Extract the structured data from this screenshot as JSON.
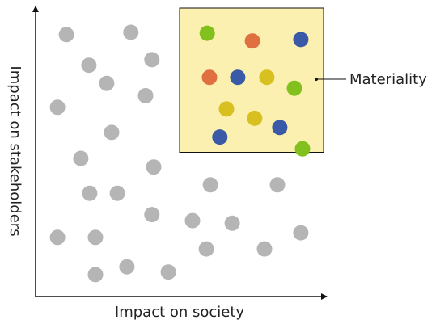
{
  "labels": {
    "x_axis": "Impact on society",
    "y_axis": "Impact on stakeholders",
    "callout": "Materiality"
  },
  "colors": {
    "axis": "#111111",
    "highlight_fill": "#fbf0b0",
    "highlight_stroke": "#111111",
    "gray": "#b5b5b5",
    "green": "#82c01e",
    "orange": "#e07040",
    "blue": "#3a5aa8",
    "yellow": "#d8c020"
  },
  "chart_data": {
    "type": "scatter",
    "xlim": [
      0,
      100
    ],
    "ylim": [
      0,
      100
    ],
    "highlight_region": {
      "x": [
        50,
        100
      ],
      "y": [
        50,
        100
      ]
    },
    "points": [
      {
        "x": 10.7,
        "y": 90.8,
        "color": "gray"
      },
      {
        "x": 33.1,
        "y": 91.6,
        "color": "gray"
      },
      {
        "x": 18.5,
        "y": 80.2,
        "color": "gray"
      },
      {
        "x": 40.4,
        "y": 82.1,
        "color": "gray"
      },
      {
        "x": 24.7,
        "y": 73.9,
        "color": "gray"
      },
      {
        "x": 38.2,
        "y": 69.6,
        "color": "gray"
      },
      {
        "x": 7.6,
        "y": 65.6,
        "color": "gray"
      },
      {
        "x": 26.4,
        "y": 56.9,
        "color": "gray"
      },
      {
        "x": 15.7,
        "y": 47.9,
        "color": "gray"
      },
      {
        "x": 41.0,
        "y": 44.9,
        "color": "gray"
      },
      {
        "x": 18.8,
        "y": 35.8,
        "color": "gray"
      },
      {
        "x": 28.4,
        "y": 35.8,
        "color": "gray"
      },
      {
        "x": 60.7,
        "y": 38.7,
        "color": "gray"
      },
      {
        "x": 84.0,
        "y": 38.7,
        "color": "gray"
      },
      {
        "x": 40.4,
        "y": 28.4,
        "color": "gray"
      },
      {
        "x": 54.5,
        "y": 26.3,
        "color": "gray"
      },
      {
        "x": 68.3,
        "y": 25.4,
        "color": "gray"
      },
      {
        "x": 92.1,
        "y": 22.1,
        "color": "gray"
      },
      {
        "x": 7.6,
        "y": 20.5,
        "color": "gray"
      },
      {
        "x": 20.8,
        "y": 20.5,
        "color": "gray"
      },
      {
        "x": 59.3,
        "y": 16.5,
        "color": "gray"
      },
      {
        "x": 79.5,
        "y": 16.5,
        "color": "gray"
      },
      {
        "x": 31.7,
        "y": 10.3,
        "color": "gray"
      },
      {
        "x": 20.8,
        "y": 7.6,
        "color": "gray"
      },
      {
        "x": 46.1,
        "y": 8.5,
        "color": "gray"
      },
      {
        "x": 59.6,
        "y": 91.3,
        "color": "green"
      },
      {
        "x": 75.3,
        "y": 88.6,
        "color": "orange"
      },
      {
        "x": 92.1,
        "y": 89.1,
        "color": "blue"
      },
      {
        "x": 60.4,
        "y": 76.0,
        "color": "orange"
      },
      {
        "x": 70.2,
        "y": 76.0,
        "color": "blue"
      },
      {
        "x": 80.3,
        "y": 76.0,
        "color": "yellow"
      },
      {
        "x": 89.9,
        "y": 72.2,
        "color": "green"
      },
      {
        "x": 66.3,
        "y": 65.0,
        "color": "yellow"
      },
      {
        "x": 76.1,
        "y": 61.8,
        "color": "yellow"
      },
      {
        "x": 84.8,
        "y": 58.6,
        "color": "blue"
      },
      {
        "x": 64.0,
        "y": 55.3,
        "color": "blue"
      },
      {
        "x": 92.7,
        "y": 51.2,
        "color": "green"
      }
    ]
  }
}
